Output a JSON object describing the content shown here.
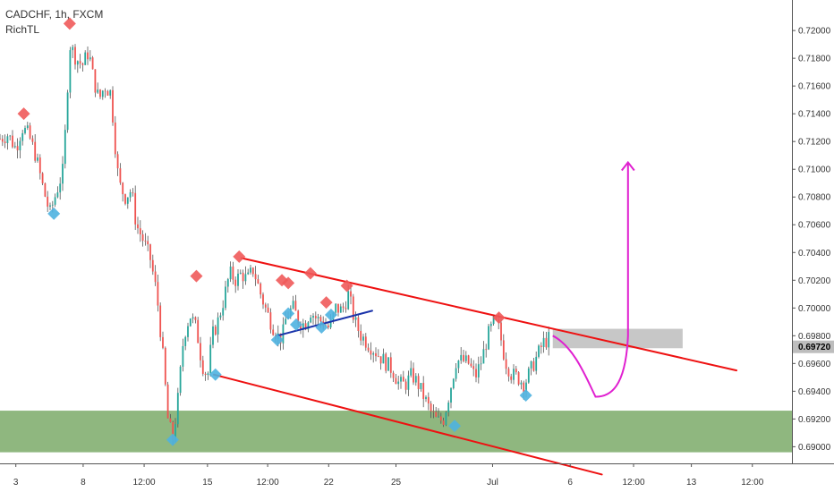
{
  "legend": {
    "symbol_line": "CADCHF, 1h, FXCM",
    "indicator": "RichTL"
  },
  "chart_data": {
    "type": "candlestick",
    "symbol": "CADCHF",
    "timeframe": "1h",
    "source": "FXCM",
    "indicator": "RichTL",
    "y_ticks": [
      "0.72000",
      "0.71800",
      "0.71600",
      "0.71400",
      "0.71200",
      "0.71000",
      "0.70800",
      "0.70600",
      "0.70400",
      "0.70200",
      "0.70000",
      "0.69800",
      "0.69600",
      "0.69400",
      "0.69200",
      "0.69000"
    ],
    "y_range": [
      0.6888,
      0.7222
    ],
    "x_ticks": [
      {
        "label": "3",
        "t": 0.02
      },
      {
        "label": "8",
        "t": 0.105
      },
      {
        "label": "12:00",
        "t": 0.182
      },
      {
        "label": "15",
        "t": 0.262
      },
      {
        "label": "12:00",
        "t": 0.338
      },
      {
        "label": "22",
        "t": 0.415
      },
      {
        "label": "25",
        "t": 0.5
      },
      {
        "label": "Jul",
        "t": 0.622
      },
      {
        "label": "6",
        "t": 0.72
      },
      {
        "label": "12:00",
        "t": 0.8
      },
      {
        "label": "13",
        "t": 0.873
      },
      {
        "label": "12:00",
        "t": 0.95
      }
    ],
    "current_price": "0.69720",
    "price_path": [
      [
        0.0,
        0.7122
      ],
      [
        0.01,
        0.7125
      ],
      [
        0.02,
        0.7115
      ],
      [
        0.028,
        0.713
      ],
      [
        0.036,
        0.7125
      ],
      [
        0.045,
        0.711
      ],
      [
        0.055,
        0.7085
      ],
      [
        0.063,
        0.7068
      ],
      [
        0.072,
        0.7085
      ],
      [
        0.08,
        0.71
      ],
      [
        0.088,
        0.719
      ],
      [
        0.096,
        0.718
      ],
      [
        0.104,
        0.7175
      ],
      [
        0.112,
        0.7185
      ],
      [
        0.118,
        0.7165
      ],
      [
        0.125,
        0.715
      ],
      [
        0.132,
        0.716
      ],
      [
        0.14,
        0.7155
      ],
      [
        0.145,
        0.712
      ],
      [
        0.15,
        0.709
      ],
      [
        0.158,
        0.708
      ],
      [
        0.166,
        0.7085
      ],
      [
        0.172,
        0.706
      ],
      [
        0.18,
        0.705
      ],
      [
        0.19,
        0.7035
      ],
      [
        0.198,
        0.701
      ],
      [
        0.205,
        0.697
      ],
      [
        0.212,
        0.692
      ],
      [
        0.218,
        0.6905
      ],
      [
        0.224,
        0.693
      ],
      [
        0.232,
        0.698
      ],
      [
        0.24,
        0.6995
      ],
      [
        0.248,
        0.6985
      ],
      [
        0.255,
        0.696
      ],
      [
        0.262,
        0.695
      ],
      [
        0.268,
        0.698
      ],
      [
        0.275,
        0.699
      ],
      [
        0.282,
        0.7005
      ],
      [
        0.29,
        0.7025
      ],
      [
        0.298,
        0.702
      ],
      [
        0.305,
        0.7025
      ],
      [
        0.312,
        0.702
      ],
      [
        0.32,
        0.7028
      ],
      [
        0.328,
        0.7012
      ],
      [
        0.335,
        0.7
      ],
      [
        0.342,
        0.699
      ],
      [
        0.35,
        0.698
      ],
      [
        0.356,
        0.6978
      ],
      [
        0.362,
        0.6995
      ],
      [
        0.37,
        0.7
      ],
      [
        0.378,
        0.699
      ],
      [
        0.385,
        0.6988
      ],
      [
        0.392,
        0.6998
      ],
      [
        0.4,
        0.6992
      ],
      [
        0.408,
        0.699
      ],
      [
        0.416,
        0.6985
      ],
      [
        0.424,
        0.7
      ],
      [
        0.432,
        0.6998
      ],
      [
        0.44,
        0.701
      ],
      [
        0.448,
        0.699
      ],
      [
        0.456,
        0.698
      ],
      [
        0.464,
        0.6975
      ],
      [
        0.472,
        0.697
      ],
      [
        0.48,
        0.6965
      ],
      [
        0.488,
        0.696
      ],
      [
        0.496,
        0.6955
      ],
      [
        0.504,
        0.6945
      ],
      [
        0.512,
        0.6945
      ],
      [
        0.52,
        0.6952
      ],
      [
        0.528,
        0.6945
      ],
      [
        0.536,
        0.6935
      ],
      [
        0.544,
        0.6925
      ],
      [
        0.552,
        0.6918
      ],
      [
        0.56,
        0.692
      ],
      [
        0.568,
        0.694
      ],
      [
        0.576,
        0.6962
      ],
      [
        0.584,
        0.6962
      ],
      [
        0.592,
        0.696
      ],
      [
        0.6,
        0.695
      ],
      [
        0.608,
        0.6962
      ],
      [
        0.616,
        0.698
      ],
      [
        0.624,
        0.699
      ],
      [
        0.63,
        0.6985
      ],
      [
        0.638,
        0.6962
      ],
      [
        0.646,
        0.6952
      ],
      [
        0.654,
        0.695
      ],
      [
        0.662,
        0.6945
      ],
      [
        0.67,
        0.6955
      ],
      [
        0.678,
        0.6965
      ],
      [
        0.686,
        0.6975
      ],
      [
        0.694,
        0.6978
      ]
    ],
    "pivots_high": [
      [
        0.03,
        0.714
      ],
      [
        0.088,
        0.7205
      ],
      [
        0.248,
        0.7023
      ],
      [
        0.302,
        0.7037
      ],
      [
        0.356,
        0.702
      ],
      [
        0.364,
        0.7018
      ],
      [
        0.392,
        0.7025
      ],
      [
        0.412,
        0.7004
      ],
      [
        0.438,
        0.7016
      ],
      [
        0.63,
        0.6993
      ]
    ],
    "pivots_low": [
      [
        0.068,
        0.7068
      ],
      [
        0.218,
        0.6905
      ],
      [
        0.272,
        0.6952
      ],
      [
        0.35,
        0.6977
      ],
      [
        0.364,
        0.6996
      ],
      [
        0.374,
        0.6988
      ],
      [
        0.406,
        0.6986
      ],
      [
        0.418,
        0.6995
      ],
      [
        0.574,
        0.6915
      ],
      [
        0.664,
        0.6937
      ]
    ],
    "annotations": {
      "channel_upper": [
        [
          0.305,
          0.7036
        ],
        [
          0.93,
          0.6955
        ]
      ],
      "channel_lower": [
        [
          0.27,
          0.6952
        ],
        [
          0.76,
          0.688
        ]
      ],
      "blue_line": [
        [
          0.35,
          0.698
        ],
        [
          0.47,
          0.6998
        ]
      ],
      "support_zone": [
        0.6896,
        0.6926
      ],
      "resistance_box": {
        "t_start": 0.698,
        "t_end": 0.862,
        "low": 0.6971,
        "high": 0.6985
      },
      "projection": [
        [
          0.698,
          0.698
        ],
        [
          0.725,
          0.6972
        ],
        [
          0.74,
          0.695
        ],
        [
          0.752,
          0.6936
        ],
        [
          0.77,
          0.6936
        ],
        [
          0.79,
          0.6942
        ],
        [
          0.793,
          0.698
        ],
        [
          0.793,
          0.7105
        ]
      ]
    }
  },
  "colors": {
    "bull": "#26a69a",
    "bear": "#ef5350",
    "candle": "#555555",
    "pivot_high": "#f05a5a",
    "pivot_low": "#4fb3e0",
    "channel": "#ee1111",
    "blue_line": "#1a33aa",
    "support": "#8fb77f",
    "resistance": "#bdbdbd",
    "projection": "#e020d0"
  }
}
